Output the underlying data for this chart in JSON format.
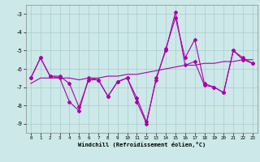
{
  "xlabel": "Windchill (Refroidissement éolien,°C)",
  "background_color": "#cce8e8",
  "grid_color": "#aacccc",
  "line_color": "#aa00aa",
  "x": [
    0,
    1,
    2,
    3,
    4,
    5,
    6,
    7,
    8,
    9,
    10,
    11,
    12,
    13,
    14,
    15,
    16,
    17,
    18,
    19,
    20,
    21,
    22,
    23
  ],
  "y_curve1": [
    -6.5,
    -5.4,
    -6.4,
    -6.5,
    -7.8,
    -8.3,
    -6.5,
    -6.6,
    -7.5,
    -6.7,
    -6.5,
    -7.8,
    -9.0,
    -6.5,
    -5.0,
    -2.9,
    -5.8,
    -5.6,
    -6.9,
    -7.0,
    -7.3,
    -5.0,
    -5.4,
    -5.7
  ],
  "y_curve2": [
    -6.5,
    -5.4,
    -6.4,
    -6.4,
    -6.8,
    -8.1,
    -6.6,
    -6.6,
    -7.5,
    -6.7,
    -6.5,
    -7.6,
    -8.9,
    -6.6,
    -4.9,
    -3.2,
    -5.4,
    -4.4,
    -6.8,
    -7.0,
    -7.3,
    -5.0,
    -5.5,
    -5.7
  ],
  "y_trend": [
    -6.8,
    -6.5,
    -6.5,
    -6.5,
    -6.5,
    -6.6,
    -6.5,
    -6.5,
    -6.4,
    -6.4,
    -6.3,
    -6.3,
    -6.2,
    -6.1,
    -6.0,
    -5.9,
    -5.8,
    -5.8,
    -5.7,
    -5.7,
    -5.6,
    -5.6,
    -5.5,
    -5.5
  ],
  "ylim": [
    -9.5,
    -2.5
  ],
  "yticks": [
    -9,
    -8,
    -7,
    -6,
    -5,
    -4,
    -3
  ],
  "xlim": [
    -0.5,
    23.5
  ],
  "xticks": [
    0,
    1,
    2,
    3,
    4,
    5,
    6,
    7,
    8,
    9,
    10,
    11,
    12,
    13,
    14,
    15,
    16,
    17,
    18,
    19,
    20,
    21,
    22,
    23
  ]
}
